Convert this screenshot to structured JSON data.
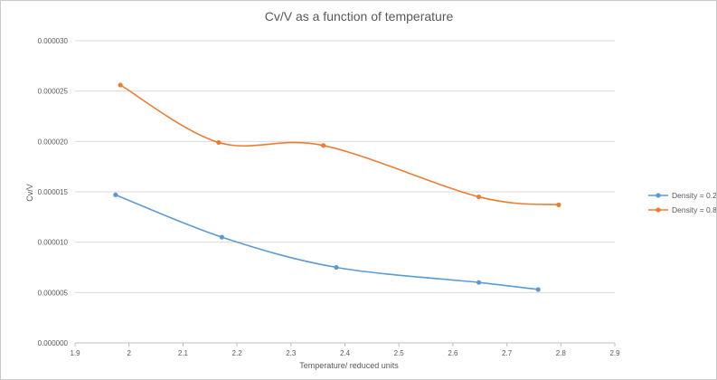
{
  "chart_data": {
    "type": "scatter",
    "title": "Cv/V as a function of temperature",
    "xlabel": "Temperature/ reduced units",
    "ylabel": "Cv/V",
    "xlim": [
      1.9,
      2.9
    ],
    "ylim": [
      0,
      3e-05
    ],
    "x_ticks": [
      "1.9",
      "2",
      "2.1",
      "2.2",
      "2.3",
      "2.4",
      "2.5",
      "2.6",
      "2.7",
      "2.8",
      "2.9"
    ],
    "y_ticks": [
      "0.000000",
      "0.000005",
      "0.000010",
      "0.000015",
      "0.000020",
      "0.000025",
      "0.000030"
    ],
    "grid": "horizontal",
    "legend_position": "right",
    "series": [
      {
        "name": "Density = 0.2",
        "color": "#5B9BD5",
        "x": [
          1.975,
          2.172,
          2.384,
          2.648,
          2.758
        ],
        "y": [
          1.47e-05,
          1.05e-05,
          7.5e-06,
          6e-06,
          5.3e-06
        ]
      },
      {
        "name": "Density = 0.8",
        "color": "#ED7D31",
        "x": [
          1.984,
          2.166,
          2.36,
          2.648,
          2.796
        ],
        "y": [
          2.56e-05,
          1.99e-05,
          1.96e-05,
          1.45e-05,
          1.37e-05
        ]
      }
    ]
  }
}
